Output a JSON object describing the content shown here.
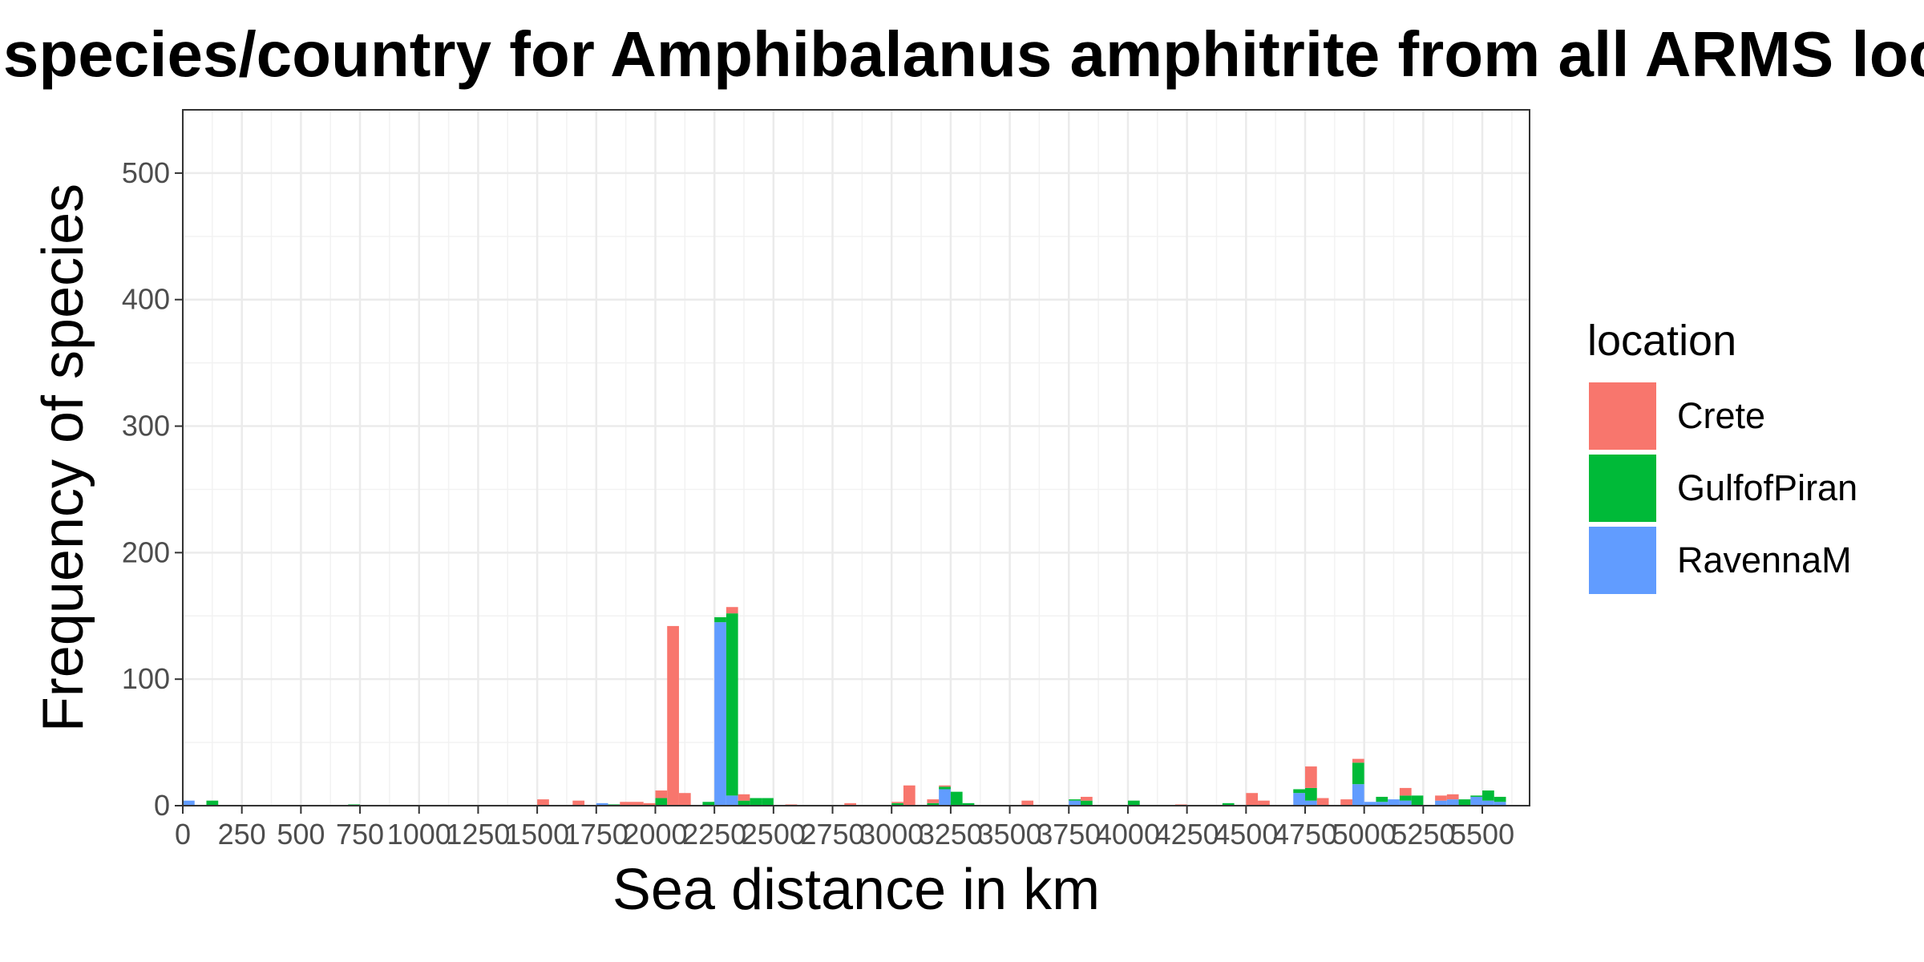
{
  "chart_data": {
    "type": "bar",
    "stacked": true,
    "title": "Frequency of species/country for Amphibalanus amphitrite from all ARMS locations",
    "xlabel": "Sea distance in km",
    "ylabel": "Frequency of species",
    "xlim": [
      0,
      5700
    ],
    "ylim": [
      0,
      550
    ],
    "bin_width": 50,
    "x_ticks": [
      0,
      250,
      500,
      750,
      1000,
      1250,
      1500,
      1750,
      2000,
      2250,
      2500,
      2750,
      3000,
      3250,
      3500,
      3750,
      4000,
      4250,
      4500,
      4750,
      5000,
      5250,
      5500
    ],
    "y_ticks": [
      0,
      100,
      200,
      300,
      400,
      500
    ],
    "grid": true,
    "legend": {
      "title": "location",
      "position": "right"
    },
    "series": [
      {
        "name": "RavennaM",
        "color": "#619CFF",
        "points": [
          {
            "x": 25,
            "y": 4
          },
          {
            "x": 1775,
            "y": 2
          },
          {
            "x": 2275,
            "y": 145
          },
          {
            "x": 2325,
            "y": 8
          },
          {
            "x": 3225,
            "y": 13
          },
          {
            "x": 3775,
            "y": 4
          },
          {
            "x": 4725,
            "y": 10
          },
          {
            "x": 4775,
            "y": 4
          },
          {
            "x": 4975,
            "y": 17
          },
          {
            "x": 5025,
            "y": 3
          },
          {
            "x": 5075,
            "y": 3
          },
          {
            "x": 5125,
            "y": 5
          },
          {
            "x": 5175,
            "y": 4
          },
          {
            "x": 5325,
            "y": 4
          },
          {
            "x": 5375,
            "y": 5
          },
          {
            "x": 5475,
            "y": 7
          },
          {
            "x": 5525,
            "y": 4
          },
          {
            "x": 5575,
            "y": 3
          }
        ]
      },
      {
        "name": "GulfofPiran",
        "color": "#00BA38",
        "points": [
          {
            "x": 125,
            "y": 4
          },
          {
            "x": 725,
            "y": 1
          },
          {
            "x": 1825,
            "y": 1
          },
          {
            "x": 2025,
            "y": 6
          },
          {
            "x": 2225,
            "y": 3
          },
          {
            "x": 2275,
            "y": 4
          },
          {
            "x": 2325,
            "y": 144
          },
          {
            "x": 2375,
            "y": 4
          },
          {
            "x": 2425,
            "y": 6
          },
          {
            "x": 2475,
            "y": 6
          },
          {
            "x": 3025,
            "y": 2
          },
          {
            "x": 3175,
            "y": 2
          },
          {
            "x": 3225,
            "y": 2
          },
          {
            "x": 3275,
            "y": 11
          },
          {
            "x": 3325,
            "y": 2
          },
          {
            "x": 3775,
            "y": 1
          },
          {
            "x": 3825,
            "y": 4
          },
          {
            "x": 4025,
            "y": 4
          },
          {
            "x": 4425,
            "y": 2
          },
          {
            "x": 4725,
            "y": 3
          },
          {
            "x": 4775,
            "y": 10
          },
          {
            "x": 4975,
            "y": 17
          },
          {
            "x": 5075,
            "y": 4
          },
          {
            "x": 5175,
            "y": 4
          },
          {
            "x": 5225,
            "y": 8
          },
          {
            "x": 5425,
            "y": 5
          },
          {
            "x": 5475,
            "y": 1
          },
          {
            "x": 5525,
            "y": 8
          },
          {
            "x": 5575,
            "y": 4
          }
        ]
      },
      {
        "name": "Crete",
        "color": "#F8766D",
        "points": [
          {
            "x": 1525,
            "y": 5
          },
          {
            "x": 1675,
            "y": 4
          },
          {
            "x": 1875,
            "y": 3
          },
          {
            "x": 1925,
            "y": 3
          },
          {
            "x": 1975,
            "y": 2
          },
          {
            "x": 2025,
            "y": 6
          },
          {
            "x": 2075,
            "y": 142
          },
          {
            "x": 2125,
            "y": 10
          },
          {
            "x": 2325,
            "y": 5
          },
          {
            "x": 2375,
            "y": 5
          },
          {
            "x": 2575,
            "y": 1
          },
          {
            "x": 2825,
            "y": 2
          },
          {
            "x": 3025,
            "y": 1
          },
          {
            "x": 3075,
            "y": 16
          },
          {
            "x": 3175,
            "y": 3
          },
          {
            "x": 3225,
            "y": 1
          },
          {
            "x": 3575,
            "y": 4
          },
          {
            "x": 3825,
            "y": 3
          },
          {
            "x": 4225,
            "y": 1
          },
          {
            "x": 4525,
            "y": 10
          },
          {
            "x": 4575,
            "y": 4
          },
          {
            "x": 4775,
            "y": 17
          },
          {
            "x": 4825,
            "y": 6
          },
          {
            "x": 4925,
            "y": 5
          },
          {
            "x": 4975,
            "y": 3
          },
          {
            "x": 5175,
            "y": 6
          },
          {
            "x": 5325,
            "y": 4
          },
          {
            "x": 5375,
            "y": 4
          }
        ]
      }
    ]
  }
}
